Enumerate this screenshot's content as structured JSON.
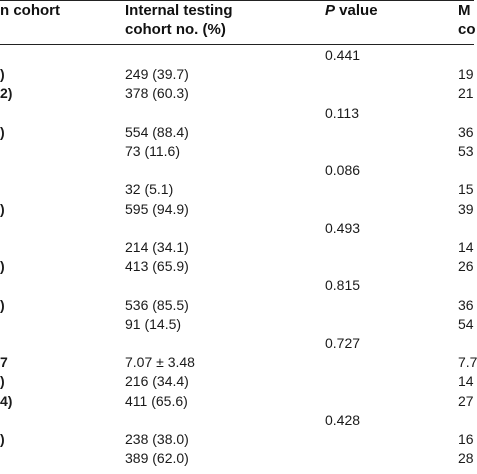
{
  "header": {
    "col0": "n cohort",
    "col1_line1": "Internal testing",
    "col1_line2": "cohort no. (%)",
    "col2_italic": "P",
    "col2_rest": " value",
    "col3_line1": "M",
    "col3_line2": "co"
  },
  "rows": [
    {
      "c0": "",
      "c1": "",
      "c2": "0.441",
      "c3": ""
    },
    {
      "c0": ")",
      "c1": "249 (39.7)",
      "c2": "",
      "c3": "19"
    },
    {
      "c0": "2)",
      "c1": "378 (60.3)",
      "c2": "",
      "c3": "21"
    },
    {
      "c0": "",
      "c1": "",
      "c2": "0.113",
      "c3": ""
    },
    {
      "c0": ")",
      "c1": "554 (88.4)",
      "c2": "",
      "c3": "36"
    },
    {
      "c0": "",
      "c1": "73 (11.6)",
      "c2": "",
      "c3": "53"
    },
    {
      "c0": "",
      "c1": "",
      "c2": "0.086",
      "c3": ""
    },
    {
      "c0": "",
      "c1": "32 (5.1)",
      "c2": "",
      "c3": "15"
    },
    {
      "c0": ")",
      "c1": "595 (94.9)",
      "c2": "",
      "c3": "39"
    },
    {
      "c0": "",
      "c1": "",
      "c2": "0.493",
      "c3": ""
    },
    {
      "c0": "",
      "c1": "214 (34.1)",
      "c2": "",
      "c3": "14"
    },
    {
      "c0": ")",
      "c1": "413 (65.9)",
      "c2": "",
      "c3": "26"
    },
    {
      "c0": "",
      "c1": "",
      "c2": "0.815",
      "c3": ""
    },
    {
      "c0": ")",
      "c1": "536 (85.5)",
      "c2": "",
      "c3": "36"
    },
    {
      "c0": "",
      "c1": "91 (14.5)",
      "c2": "",
      "c3": "54"
    },
    {
      "c0": "",
      "c1": "",
      "c2": "0.727",
      "c3": ""
    },
    {
      "c0": "7",
      "c1": "7.07 ± 3.48",
      "c2": "",
      "c3": "7.7"
    },
    {
      "c0": ")",
      "c1": "216 (34.4)",
      "c2": "",
      "c3": "14"
    },
    {
      "c0": "4)",
      "c1": "411 (65.6)",
      "c2": "",
      "c3": "27"
    },
    {
      "c0": "",
      "c1": "",
      "c2": "0.428",
      "c3": ""
    },
    {
      "c0": ")",
      "c1": "238 (38.0)",
      "c2": "",
      "c3": "16"
    },
    {
      "c0": "",
      "c1": "389 (62.0)",
      "c2": "",
      "c3": "28"
    }
  ]
}
